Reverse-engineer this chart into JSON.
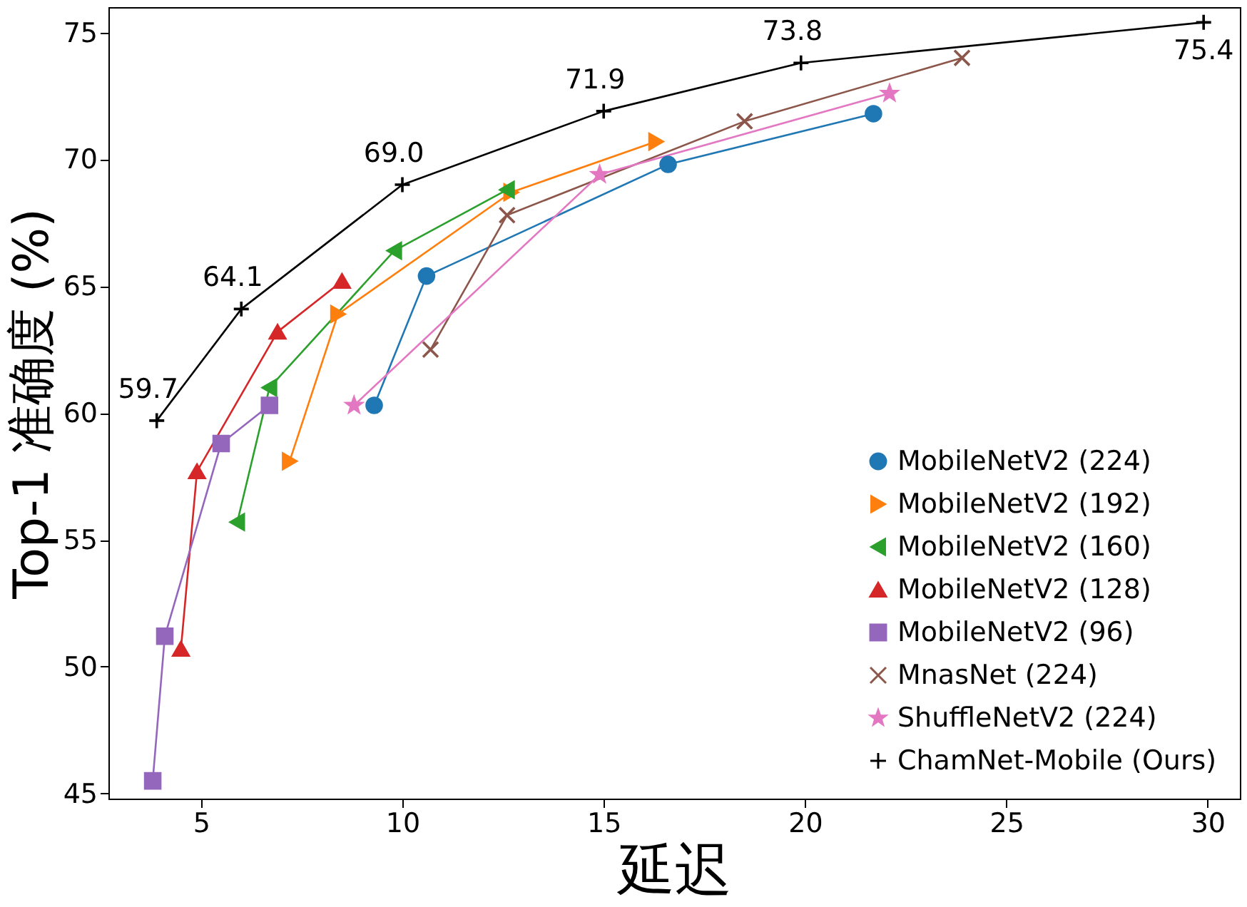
{
  "chart_data": {
    "type": "line",
    "xlabel": "延迟",
    "ylabel": "Top-1 准确度 (%)",
    "xlim": [
      2.7,
      30.8
    ],
    "ylim": [
      44.8,
      76.0
    ],
    "xticks": [
      5,
      10,
      15,
      20,
      25,
      30
    ],
    "yticks": [
      45,
      50,
      55,
      60,
      65,
      70,
      75
    ],
    "grid": false,
    "legend": "bottom right",
    "series": [
      {
        "name": "MobileNetV2 (224)",
        "color": "#1f77b4",
        "marker": "circle",
        "x": [
          9.3,
          10.6,
          16.6,
          21.7
        ],
        "values": [
          60.3,
          65.4,
          69.8,
          71.8
        ]
      },
      {
        "name": "MobileNetV2 (192)",
        "color": "#ff7f0e",
        "marker": "triangle-right",
        "x": [
          7.2,
          8.4,
          12.7,
          16.3
        ],
        "values": [
          58.1,
          63.9,
          68.7,
          70.7
        ]
      },
      {
        "name": "MobileNetV2 (160)",
        "color": "#2ca02c",
        "marker": "triangle-left",
        "x": [
          5.9,
          6.7,
          9.8,
          12.6
        ],
        "values": [
          55.7,
          61.0,
          66.4,
          68.8
        ]
      },
      {
        "name": "MobileNetV2 (128)",
        "color": "#d62728",
        "marker": "triangle",
        "x": [
          4.5,
          4.9,
          6.9,
          8.5
        ],
        "values": [
          50.7,
          57.7,
          63.2,
          65.2
        ]
      },
      {
        "name": "MobileNetV2 (96)",
        "color": "#9467bd",
        "marker": "square",
        "x": [
          3.8,
          4.1,
          5.5,
          6.7
        ],
        "values": [
          45.5,
          51.2,
          58.8,
          60.3
        ]
      },
      {
        "name": "MnasNet (224)",
        "color": "#8c564b",
        "marker": "cross",
        "x": [
          10.7,
          12.6,
          18.5,
          23.9
        ],
        "values": [
          62.5,
          67.8,
          71.5,
          74.0
        ]
      },
      {
        "name": "ShuffleNetV2 (224)",
        "color": "#e377c2",
        "marker": "star",
        "x": [
          8.8,
          14.9,
          22.1
        ],
        "values": [
          60.3,
          69.4,
          72.6
        ]
      },
      {
        "name": "ChamNet-Mobile (Ours)",
        "color": "#000000",
        "marker": "plus",
        "x": [
          3.9,
          6.0,
          10.0,
          15.0,
          19.9,
          29.9
        ],
        "values": [
          59.7,
          64.1,
          69.0,
          71.9,
          73.8,
          75.4
        ],
        "value_labels": [
          "59.7",
          "64.1",
          "69.0",
          "71.9",
          "73.8",
          "75.4"
        ]
      }
    ]
  }
}
